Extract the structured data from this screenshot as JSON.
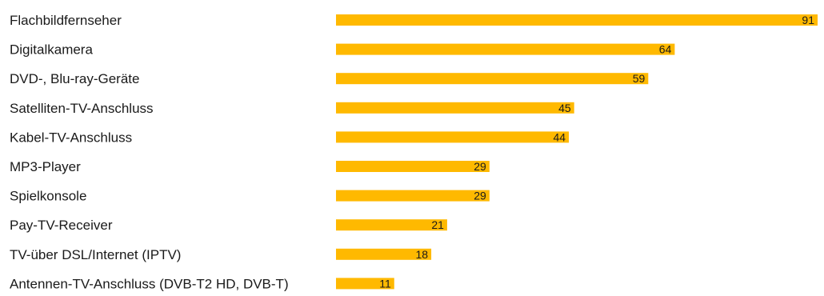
{
  "chart_data": {
    "type": "bar",
    "orientation": "horizontal",
    "categories": [
      "Flachbildfernseher",
      "Digitalkamera",
      "DVD-, Blu-ray-Geräte",
      "Satelliten-TV-Anschluss",
      "Kabel-TV-Anschluss",
      "MP3-Player",
      "Spielkonsole",
      "Pay-TV-Receiver",
      "TV-über DSL/Internet (IPTV)",
      "Antennen-TV-Anschluss (DVB-T2 HD, DVB-T)"
    ],
    "values": [
      91,
      64,
      59,
      45,
      44,
      29,
      29,
      21,
      18,
      11
    ],
    "value_labels": [
      "91",
      "64",
      "59",
      "45",
      "44",
      "29",
      "29",
      "21",
      "18",
      "11"
    ],
    "xlim": [
      0,
      91
    ],
    "bar_color": "#ffb900",
    "grid": false,
    "legend": "none"
  }
}
